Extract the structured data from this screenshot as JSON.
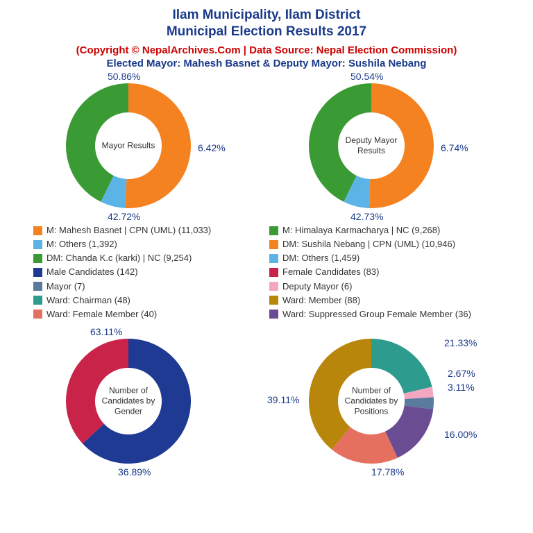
{
  "header": {
    "title_line1": "Ilam Municipality, Ilam District",
    "title_line2": "Municipal Election Results 2017",
    "copyright": "(Copyright © NepalArchives.Com | Data Source: Nepal Election Commission)",
    "elected": "Elected Mayor: Mahesh Basnet & Deputy Mayor: Sushila Nebang"
  },
  "colors": {
    "orange": "#f58220",
    "green": "#3a9b35",
    "lightblue": "#5cb3e6",
    "navy": "#1f3a93",
    "crimson": "#c9234a",
    "teal": "#2e9b8f",
    "pink": "#f4a7c0",
    "steel": "#5a7a9e",
    "purple": "#6a4c93",
    "salmon": "#e67060",
    "gold": "#b8860b",
    "title_blue": "#1a3a8a",
    "red": "#cc0000"
  },
  "charts": {
    "mayor": {
      "center": "Mayor Results",
      "slices": [
        {
          "pct": 50.86,
          "color": "#f58220",
          "label": "50.86%"
        },
        {
          "pct": 6.42,
          "color": "#5cb3e6",
          "label": "6.42%"
        },
        {
          "pct": 42.72,
          "color": "#3a9b35",
          "label": "42.72%"
        }
      ]
    },
    "deputy": {
      "center": "Deputy Mayor Results",
      "slices": [
        {
          "pct": 50.54,
          "color": "#f58220",
          "label": "50.54%"
        },
        {
          "pct": 6.74,
          "color": "#5cb3e6",
          "label": "6.74%"
        },
        {
          "pct": 42.73,
          "color": "#3a9b35",
          "label": "42.73%"
        }
      ]
    },
    "gender": {
      "center": "Number of Candidates by Gender",
      "slices": [
        {
          "pct": 63.11,
          "color": "#1f3a93",
          "label": "63.11%"
        },
        {
          "pct": 36.89,
          "color": "#c9234a",
          "label": "36.89%"
        }
      ]
    },
    "positions": {
      "center": "Number of Candidates by Positions",
      "slices": [
        {
          "pct": 21.33,
          "color": "#2e9b8f",
          "label": "21.33%"
        },
        {
          "pct": 2.67,
          "color": "#f4a7c0",
          "label": "2.67%"
        },
        {
          "pct": 3.11,
          "color": "#5a7a9e",
          "label": "3.11%"
        },
        {
          "pct": 16.0,
          "color": "#6a4c93",
          "label": "16.00%"
        },
        {
          "pct": 17.78,
          "color": "#e67060",
          "label": "17.78%"
        },
        {
          "pct": 39.11,
          "color": "#b8860b",
          "label": "39.11%"
        }
      ]
    }
  },
  "legend": [
    {
      "left": {
        "sw": "#f58220",
        "t": "M: Mahesh Basnet | CPN (UML) (11,033)"
      },
      "right": {
        "sw": "#3a9b35",
        "t": "M: Himalaya Karmacharya | NC (9,268)"
      }
    },
    {
      "left": {
        "sw": "#5cb3e6",
        "t": "M: Others (1,392)"
      },
      "right": {
        "sw": "#f58220",
        "t": "DM: Sushila Nebang | CPN (UML) (10,946)"
      }
    },
    {
      "left": {
        "sw": "#3a9b35",
        "t": "DM: Chanda K.c (karki) | NC (9,254)"
      },
      "right": {
        "sw": "#5cb3e6",
        "t": "DM: Others (1,459)"
      }
    },
    {
      "left": {
        "sw": "#1f3a93",
        "t": "Male Candidates (142)"
      },
      "right": {
        "sw": "#c9234a",
        "t": "Female Candidates (83)"
      }
    },
    {
      "left": {
        "sw": "#5a7a9e",
        "t": "Mayor (7)"
      },
      "right": {
        "sw": "#f4a7c0",
        "t": "Deputy Mayor (6)"
      }
    },
    {
      "left": {
        "sw": "#2e9b8f",
        "t": "Ward: Chairman (48)"
      },
      "right": {
        "sw": "#b8860b",
        "t": "Ward: Member (88)"
      }
    },
    {
      "left": {
        "sw": "#e67060",
        "t": "Ward: Female Member (40)"
      },
      "right": {
        "sw": "#6a4c93",
        "t": "Ward: Suppressed Group Female Member (36)"
      }
    }
  ],
  "donut": {
    "outer_r": 90,
    "inner_r": 48,
    "start_angle": -90
  }
}
